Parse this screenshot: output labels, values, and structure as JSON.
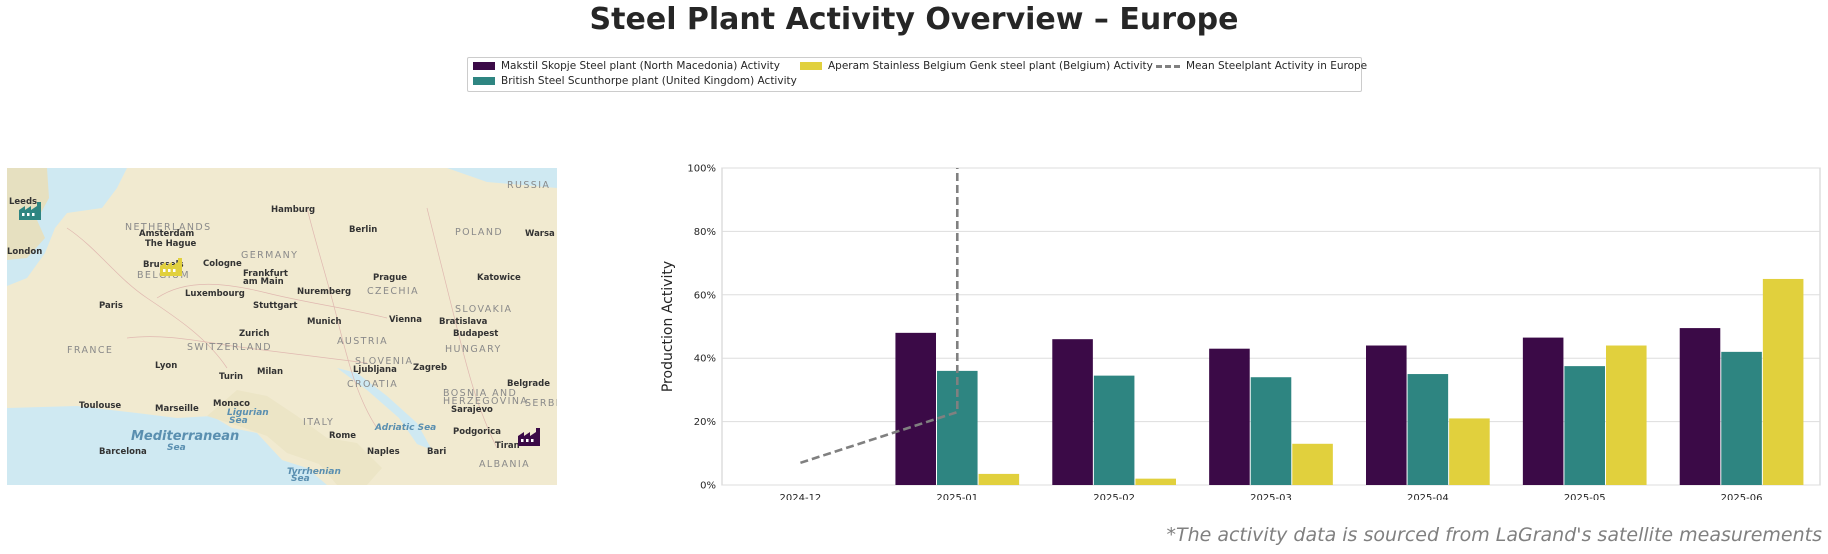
{
  "title": "Steel Plant Activity Overview – Europe",
  "footnote": "*The activity data is sourced from LaGrand's satellite measurements",
  "colors": {
    "makstil": "#3b0a47",
    "british": "#2e8581",
    "aperam": "#e1d03d",
    "mean": "#808080"
  },
  "legend": [
    {
      "label": "Makstil Skopje Steel plant (North Macedonia) Activity",
      "color": "#3b0a47",
      "style": "bar"
    },
    {
      "label": "British Steel Scunthorpe plant (United Kingdom) Activity",
      "color": "#2e8581",
      "style": "bar"
    },
    {
      "label": "Aperam Stainless Belgium Genk steel plant (Belgium) Activity",
      "color": "#e1d03d",
      "style": "bar"
    },
    {
      "label": "Mean Steelplant Activity in Europe",
      "color": "#808080",
      "style": "dashed-line"
    }
  ],
  "map": {
    "labels": [
      {
        "text": "Leeds",
        "kind": "city"
      },
      {
        "text": "Hamburg",
        "kind": "city"
      },
      {
        "text": "RUSSIA",
        "kind": "country"
      },
      {
        "text": "NETHERLANDS",
        "kind": "country"
      },
      {
        "text": "Amsterdam",
        "kind": "city"
      },
      {
        "text": "Berlin",
        "kind": "city"
      },
      {
        "text": "POLAND",
        "kind": "country"
      },
      {
        "text": "Warsa",
        "kind": "city"
      },
      {
        "text": "London",
        "kind": "city"
      },
      {
        "text": "The Hague",
        "kind": "city"
      },
      {
        "text": "GERMANY",
        "kind": "country"
      },
      {
        "text": "Brussels",
        "kind": "city"
      },
      {
        "text": "Cologne",
        "kind": "city"
      },
      {
        "text": "BELGIUM",
        "kind": "country"
      },
      {
        "text": "Frankfurt",
        "kind": "city"
      },
      {
        "text": "am Main",
        "kind": "city"
      },
      {
        "text": "Prague",
        "kind": "city"
      },
      {
        "text": "Katowice",
        "kind": "city"
      },
      {
        "text": "Luxembourg",
        "kind": "city"
      },
      {
        "text": "CZECHIA",
        "kind": "country"
      },
      {
        "text": "Nuremberg",
        "kind": "city"
      },
      {
        "text": "Paris",
        "kind": "city"
      },
      {
        "text": "Stuttgart",
        "kind": "city"
      },
      {
        "text": "SLOVAKIA",
        "kind": "country"
      },
      {
        "text": "Vienna",
        "kind": "city"
      },
      {
        "text": "Bratislava",
        "kind": "city"
      },
      {
        "text": "Munich",
        "kind": "city"
      },
      {
        "text": "FRANCE",
        "kind": "country"
      },
      {
        "text": "Zurich",
        "kind": "city"
      },
      {
        "text": "AUSTRIA",
        "kind": "country"
      },
      {
        "text": "Budapest",
        "kind": "city"
      },
      {
        "text": "SWITZERLAND",
        "kind": "country"
      },
      {
        "text": "HUNGARY",
        "kind": "country"
      },
      {
        "text": "SLOVENIA",
        "kind": "country"
      },
      {
        "text": "Lyon",
        "kind": "city"
      },
      {
        "text": "Milan",
        "kind": "city"
      },
      {
        "text": "Ljubljana",
        "kind": "city"
      },
      {
        "text": "Zagreb",
        "kind": "city"
      },
      {
        "text": "Turin",
        "kind": "city"
      },
      {
        "text": "CROATIA",
        "kind": "country"
      },
      {
        "text": "Belgrade",
        "kind": "city"
      },
      {
        "text": "Toulouse",
        "kind": "city"
      },
      {
        "text": "Monaco",
        "kind": "city"
      },
      {
        "text": "Marseille",
        "kind": "city"
      },
      {
        "text": "BOSNIA AND",
        "kind": "country"
      },
      {
        "text": "HERZEGOVINA",
        "kind": "country"
      },
      {
        "text": "SERBIA",
        "kind": "country"
      },
      {
        "text": "Ligurian",
        "kind": "sea"
      },
      {
        "text": "Sea",
        "kind": "sea"
      },
      {
        "text": "Sarajevo",
        "kind": "city"
      },
      {
        "text": "ITALY",
        "kind": "country"
      },
      {
        "text": "Adriatic Sea",
        "kind": "sea"
      },
      {
        "text": "Podgorica",
        "kind": "city"
      },
      {
        "text": "Mediterranean",
        "kind": "sea"
      },
      {
        "text": "Sea",
        "kind": "sea"
      },
      {
        "text": "Rome",
        "kind": "city"
      },
      {
        "text": "Barcelona",
        "kind": "city"
      },
      {
        "text": "Naples",
        "kind": "city"
      },
      {
        "text": "Bari",
        "kind": "city"
      },
      {
        "text": "Tiran",
        "kind": "city"
      },
      {
        "text": "Tyrrhenian",
        "kind": "sea"
      },
      {
        "text": "Sea",
        "kind": "sea"
      },
      {
        "text": "ALBANIA",
        "kind": "country"
      }
    ],
    "markers": [
      {
        "plant": "British Steel Scunthorpe",
        "color": "#2e8581",
        "icon": "factory-icon"
      },
      {
        "plant": "Aperam Stainless Belgium Genk",
        "color": "#e1d03d",
        "icon": "factory-icon"
      },
      {
        "plant": "Makstil Skopje",
        "color": "#3b0a47",
        "icon": "factory-icon"
      }
    ]
  },
  "chart_data": {
    "type": "bar",
    "title": "",
    "xlabel": "",
    "ylabel": "Production Activity",
    "categories": [
      "2024-12",
      "2025-01",
      "2025-02",
      "2025-03",
      "2025-04",
      "2025-05",
      "2025-06"
    ],
    "ylim": [
      0,
      100
    ],
    "yticks": [
      "0%",
      "20%",
      "40%",
      "60%",
      "80%",
      "100%"
    ],
    "grid": "horizontal",
    "series": [
      {
        "name": "Makstil Skopje Steel plant (North Macedonia) Activity",
        "color": "#3b0a47",
        "values": [
          null,
          48,
          46,
          43,
          44,
          46.5,
          49.5
        ]
      },
      {
        "name": "British Steel Scunthorpe plant (United Kingdom) Activity",
        "color": "#2e8581",
        "values": [
          null,
          36,
          34.5,
          34,
          35,
          37.5,
          42
        ]
      },
      {
        "name": "Aperam Stainless Belgium Genk steel plant (Belgium) Activity",
        "color": "#e1d03d",
        "values": [
          null,
          3.5,
          2,
          13,
          21,
          44,
          65
        ]
      }
    ],
    "mean_line": {
      "name": "Mean Steelplant Activity in Europe",
      "color": "#808080",
      "style": "dashed",
      "points": [
        {
          "x": "2024-12",
          "y": 7
        },
        {
          "x": "2025-01",
          "y": 23
        },
        {
          "x": "2025-01",
          "y": 100
        }
      ]
    }
  }
}
